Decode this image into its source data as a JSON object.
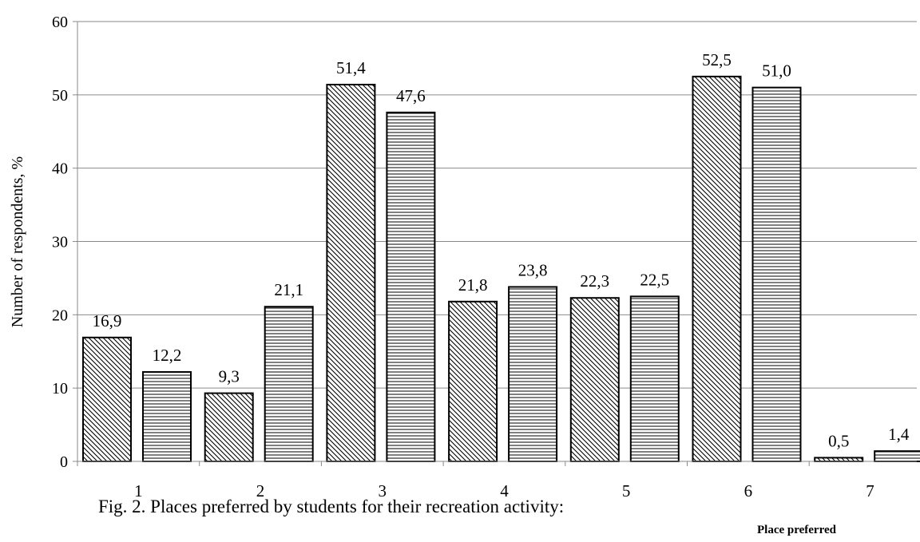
{
  "caption": "Fig. 2. Places preferred by students for their recreation activity:",
  "chart_data": {
    "type": "bar",
    "title": "",
    "xlabel": "Place preferred",
    "ylabel": "Number of respondents, %",
    "ylim": [
      0,
      60
    ],
    "yticks": [
      "0",
      "10",
      "20",
      "30",
      "40",
      "50",
      "60"
    ],
    "grid": true,
    "categories": [
      "1",
      "2",
      "3",
      "4",
      "5",
      "6",
      "7"
    ],
    "series": [
      {
        "pattern": "diagonal-hatch",
        "values": [
          16.9,
          9.3,
          51.4,
          21.8,
          22.3,
          52.5,
          0.5
        ],
        "labels": [
          "16,9",
          "9,3",
          "51,4",
          "21,8",
          "22,3",
          "52,5",
          "0,5"
        ]
      },
      {
        "pattern": "horizontal-hatch",
        "values": [
          12.2,
          21.1,
          47.6,
          23.8,
          22.5,
          51.0,
          1.4
        ],
        "labels": [
          "12,2",
          "21,1",
          "47,6",
          "23,8",
          "22,5",
          "51,0",
          "1,4"
        ]
      }
    ]
  }
}
